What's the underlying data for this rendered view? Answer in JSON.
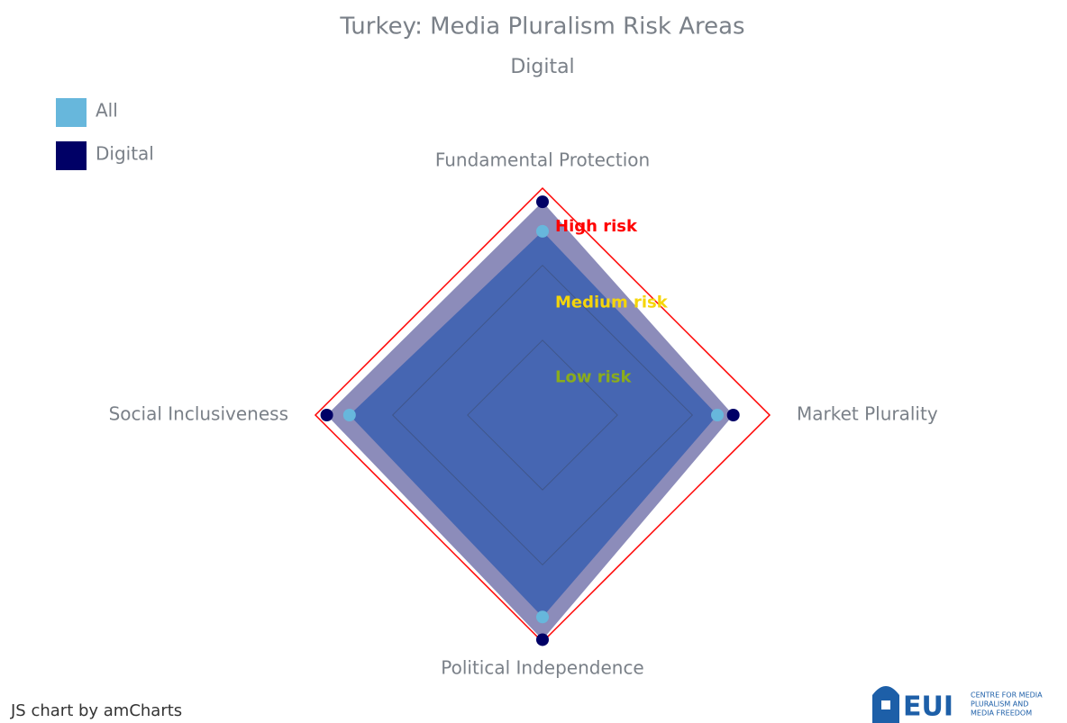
{
  "chart_data": {
    "type": "radar",
    "title": "Turkey: Media Pluralism Risk Areas",
    "subtitle": "Digital",
    "categories": [
      "Fundamental Protection",
      "Market Plurality",
      "Political Independence",
      "Social Inclusiveness"
    ],
    "series": [
      {
        "name": "All",
        "color": "#67b7dc",
        "values": [
          81,
          77,
          89,
          85
        ]
      },
      {
        "name": "Digital",
        "color": "#000066",
        "values": [
          94,
          84,
          99,
          95
        ]
      }
    ],
    "rlim": [
      0,
      100
    ],
    "rticks": [
      33,
      66
    ],
    "guides": [
      {
        "label": "Low risk",
        "from": 0,
        "to": 33,
        "color": "#8aac1c"
      },
      {
        "label": "Medium risk",
        "from": 33,
        "to": 66,
        "color": "#f5d50a"
      },
      {
        "label": "High risk",
        "from": 66,
        "to": 100,
        "color": "#ff0000"
      }
    ],
    "legend": "top-left",
    "credit": "JS chart by amCharts",
    "logo": {
      "mark": "EUI",
      "text": [
        "CENTRE FOR MEDIA",
        "PLURALISM AND",
        "MEDIA FREEDOM"
      ]
    }
  }
}
